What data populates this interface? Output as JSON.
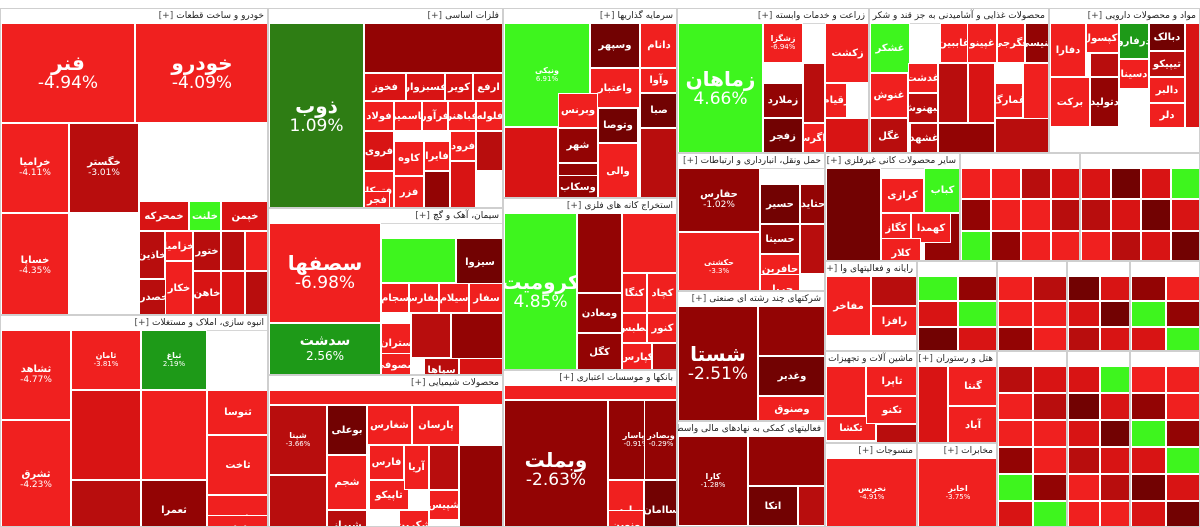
{
  "sectors": [
    {
      "id": "auto",
      "title": "خودرو و ساخت قطعات",
      "plus": "[+]",
      "tiles": [
        {
          "symbol": "فنر",
          "change": "-4.94%",
          "color": "r",
          "size": "lg"
        },
        {
          "symbol": "خودرو",
          "change": "-4.09%",
          "color": "r",
          "size": "lg"
        },
        {
          "symbol": "خرامیا",
          "change": "-4.11%",
          "color": "r",
          "size": "sm"
        },
        {
          "symbol": "خگستر",
          "change": "-3.01%",
          "color": "r3",
          "size": "sm"
        },
        {
          "symbol": "خساپا",
          "change": "-4.35%",
          "color": "r",
          "size": "sm"
        },
        {
          "symbol": "خمحرکه",
          "change": "",
          "color": "r2",
          "size": "sm"
        },
        {
          "symbol": "خلنت",
          "change": "",
          "color": "g-light",
          "size": "sm"
        },
        {
          "symbol": "خپمن",
          "change": "",
          "color": "r2",
          "size": "sm"
        },
        {
          "symbol": "خاذین",
          "change": "",
          "color": "r3",
          "size": "sm"
        },
        {
          "symbol": "خزامیا",
          "change": "",
          "color": "r",
          "size": "sm"
        },
        {
          "symbol": "خصدر",
          "change": "",
          "color": "r3",
          "size": "sm"
        },
        {
          "symbol": "خکار",
          "change": "",
          "color": "r",
          "size": "sm"
        },
        {
          "symbol": "ختور",
          "change": "",
          "color": "r3",
          "size": "sm"
        },
        {
          "symbol": "خاهن",
          "change": "",
          "color": "r2",
          "size": "sm"
        }
      ]
    },
    {
      "id": "basic-metals",
      "title": "فلزات اساسی",
      "plus": "[+]",
      "tiles": [
        {
          "symbol": "ذوب",
          "change": "1.09%",
          "color": "g-deep",
          "size": "lg"
        },
        {
          "symbol": "کویر",
          "change": "",
          "color": "r2",
          "size": "sm"
        },
        {
          "symbol": "ارفع",
          "change": "",
          "color": "r2",
          "size": "sm"
        },
        {
          "symbol": "فخوز",
          "change": "",
          "color": "r2",
          "size": "sm"
        },
        {
          "symbol": "فسبزوار",
          "change": "",
          "color": "r2",
          "size": "sm"
        },
        {
          "symbol": "فولاد",
          "change": "",
          "color": "r",
          "size": "sm"
        },
        {
          "symbol": "فاسمین",
          "change": "",
          "color": "r",
          "size": "sm"
        },
        {
          "symbol": "فرآور",
          "change": "",
          "color": "r",
          "size": "sm"
        },
        {
          "symbol": "فباهنر",
          "change": "",
          "color": "r",
          "size": "sm"
        },
        {
          "symbol": "فلوله",
          "change": "",
          "color": "r",
          "size": "sm"
        },
        {
          "symbol": "فروی",
          "change": "",
          "color": "r2",
          "size": "sm"
        },
        {
          "symbol": "کاوه",
          "change": "",
          "color": "r",
          "size": "sm"
        },
        {
          "symbol": "فتوکا",
          "change": "",
          "color": "r",
          "size": "sm"
        },
        {
          "symbol": "فایرا",
          "change": "",
          "color": "r",
          "size": "sm"
        },
        {
          "symbol": "فزر",
          "change": "",
          "color": "r",
          "size": "sm"
        },
        {
          "symbol": "فرود",
          "change": "",
          "color": "r",
          "size": "sm"
        },
        {
          "symbol": "فجر",
          "change": "",
          "color": "r",
          "size": "sm"
        }
      ]
    },
    {
      "id": "investment",
      "title": "سرمایه گذاریها",
      "plus": "[+]",
      "tiles": [
        {
          "symbol": "وسپهر",
          "change": "",
          "color": "r5",
          "size": "sm"
        },
        {
          "symbol": "وصنعت",
          "change": "",
          "color": "g-light",
          "size": "sm"
        },
        {
          "symbol": "ونیکی",
          "change": "6.91%",
          "color": "g-light",
          "size": "xs"
        },
        {
          "symbol": "دانام",
          "change": "",
          "color": "r",
          "size": "sm"
        },
        {
          "symbol": "وآوا",
          "change": "",
          "color": "r",
          "size": "sm"
        },
        {
          "symbol": "واعتبار",
          "change": "",
          "color": "r",
          "size": "sm"
        },
        {
          "symbol": "وبرنس",
          "change": "",
          "color": "r",
          "size": "sm"
        },
        {
          "symbol": "وتوصا",
          "change": "",
          "color": "r5",
          "size": "sm"
        },
        {
          "symbol": "صبا",
          "change": "",
          "color": "r5",
          "size": "sm"
        },
        {
          "symbol": "وبهمن",
          "change": "",
          "color": "r4",
          "size": "sm"
        },
        {
          "symbol": "شهر",
          "change": "",
          "color": "r4",
          "size": "sm"
        },
        {
          "symbol": "وسکاب",
          "change": "",
          "color": "r4",
          "size": "sm"
        },
        {
          "symbol": "والی",
          "change": "",
          "color": "r",
          "size": "sm"
        }
      ]
    },
    {
      "id": "agriculture",
      "title": "زراعت و خدمات وابسته",
      "plus": "[+]",
      "tiles": [
        {
          "symbol": "زماهان",
          "change": "4.66%",
          "color": "g-light",
          "size": "lg"
        },
        {
          "symbol": "زشگزا",
          "change": "-6.94%",
          "color": "r",
          "size": "xs"
        },
        {
          "symbol": "زملارد",
          "change": "",
          "color": "r4",
          "size": "sm"
        },
        {
          "symbol": "زقیام",
          "change": "",
          "color": "r",
          "size": "sm"
        },
        {
          "symbol": "زکشت",
          "change": "",
          "color": "r",
          "size": "sm"
        },
        {
          "symbol": "زاگرس",
          "change": "",
          "color": "r",
          "size": "sm"
        },
        {
          "symbol": "زفجر",
          "change": "",
          "color": "r5",
          "size": "sm"
        }
      ]
    },
    {
      "id": "food",
      "title": "محصولات غذایی و آشامیدنی به جز قند و شکر",
      "plus": "[+]",
      "tiles": [
        {
          "symbol": "غشکر",
          "change": "",
          "color": "g-light",
          "size": "sm"
        },
        {
          "symbol": "غنوش",
          "change": "",
          "color": "r",
          "size": "sm"
        },
        {
          "symbol": "غگل",
          "change": "",
          "color": "r3",
          "size": "sm"
        },
        {
          "symbol": "غبهنوش",
          "change": "",
          "color": "r3",
          "size": "sm"
        },
        {
          "symbol": "غدشت",
          "change": "",
          "color": "r",
          "size": "sm"
        },
        {
          "symbol": "غاببین",
          "change": "",
          "color": "r",
          "size": "sm"
        },
        {
          "symbol": "غشهد",
          "change": "",
          "color": "r3",
          "size": "sm"
        },
        {
          "symbol": "غنیسی",
          "change": "",
          "color": "r4",
          "size": "sm"
        },
        {
          "symbol": "غپینو",
          "change": "",
          "color": "r",
          "size": "sm"
        },
        {
          "symbol": "غگرجی",
          "change": "",
          "color": "r",
          "size": "sm"
        },
        {
          "symbol": "غمارگ",
          "change": "",
          "color": "r",
          "size": "sm"
        }
      ]
    },
    {
      "id": "pharma",
      "title": "مواد و محصولات دارویی",
      "plus": "[+]",
      "tiles": [
        {
          "symbol": "درفارو",
          "change": "",
          "color": "g-mid",
          "size": "sm"
        },
        {
          "symbol": "دبالک",
          "change": "",
          "color": "r5",
          "size": "sm"
        },
        {
          "symbol": "تیپیکو",
          "change": "",
          "color": "r3",
          "size": "sm"
        },
        {
          "symbol": "دالبر",
          "change": "",
          "color": "r",
          "size": "sm"
        },
        {
          "symbol": "برکت",
          "change": "",
          "color": "r",
          "size": "sm"
        },
        {
          "symbol": "دکپسول",
          "change": "",
          "color": "r",
          "size": "sm"
        },
        {
          "symbol": "دلر",
          "change": "",
          "color": "r",
          "size": "sm"
        },
        {
          "symbol": "دفارا",
          "change": "",
          "color": "r",
          "size": "sm"
        },
        {
          "symbol": "دتولید",
          "change": "",
          "color": "r4",
          "size": "sm"
        },
        {
          "symbol": "دسینا",
          "change": "",
          "color": "r",
          "size": "sm"
        }
      ]
    },
    {
      "id": "cement",
      "title": "سیمان، آهک و گچ",
      "plus": "[+]",
      "tiles": [
        {
          "symbol": "سصفها",
          "change": "-6.98%",
          "color": "r",
          "size": "lg"
        },
        {
          "symbol": "سدشت",
          "change": "2.56%",
          "color": "g-mid",
          "size": "md"
        },
        {
          "symbol": "سیزوا",
          "change": "",
          "color": "r5",
          "size": "sm"
        },
        {
          "symbol": "سفار",
          "change": "",
          "color": "r",
          "size": "sm"
        },
        {
          "symbol": "سیلام",
          "change": "",
          "color": "r",
          "size": "sm"
        },
        {
          "symbol": "سفارس",
          "change": "",
          "color": "r",
          "size": "sm"
        },
        {
          "symbol": "سجام",
          "change": "",
          "color": "r",
          "size": "sm"
        },
        {
          "symbol": "ستران",
          "change": "",
          "color": "r",
          "size": "sm"
        },
        {
          "symbol": "سصوفی",
          "change": "",
          "color": "r",
          "size": "sm"
        },
        {
          "symbol": "سپاها",
          "change": "",
          "color": "r3",
          "size": "sm"
        }
      ]
    },
    {
      "id": "mining",
      "title": "استخراج کانه های فلزی",
      "plus": "[+]",
      "tiles": [
        {
          "symbol": "کرومیت",
          "change": "4.85%",
          "color": "g-light",
          "size": "lg"
        },
        {
          "symbol": "کچاد",
          "change": "",
          "color": "r",
          "size": "sm"
        },
        {
          "symbol": "کنگا",
          "change": "",
          "color": "r",
          "size": "sm"
        },
        {
          "symbol": "ومعادن",
          "change": "",
          "color": "r4",
          "size": "sm"
        },
        {
          "symbol": "کگل",
          "change": "",
          "color": "r4",
          "size": "sm"
        },
        {
          "symbol": "کپارس",
          "change": "",
          "color": "r",
          "size": "sm"
        },
        {
          "symbol": "کنور",
          "change": "",
          "color": "r",
          "size": "sm"
        },
        {
          "symbol": "کطبس",
          "change": "",
          "color": "r",
          "size": "sm"
        }
      ]
    },
    {
      "id": "transport",
      "title": "حمل ونقل، انبارداری و ارتباطات",
      "plus": "[+]",
      "tiles": [
        {
          "symbol": "حفارس",
          "change": "-1.02%",
          "color": "r4",
          "size": "sm"
        },
        {
          "symbol": "حسیر",
          "change": "",
          "color": "r5",
          "size": "sm"
        },
        {
          "symbol": "حتاید",
          "change": "",
          "color": "r4",
          "size": "sm"
        },
        {
          "symbol": "حسینا",
          "change": "",
          "color": "r4",
          "size": "sm"
        },
        {
          "symbol": "حافرین",
          "change": "",
          "color": "r",
          "size": "sm"
        },
        {
          "symbol": "حکشتی",
          "change": "-3.3%",
          "color": "r",
          "size": "xs"
        },
        {
          "symbol": "حریل",
          "change": "",
          "color": "r",
          "size": "sm"
        }
      ]
    },
    {
      "id": "nonmetal",
      "title": "سایر محصولات کانی غیرفلزی",
      "plus": "[+]",
      "tiles": [
        {
          "symbol": "کباب",
          "change": "",
          "color": "g-light",
          "size": "sm"
        },
        {
          "symbol": "کرازی",
          "change": "",
          "color": "r",
          "size": "sm"
        },
        {
          "symbol": "کگاز",
          "change": "",
          "color": "r",
          "size": "sm"
        },
        {
          "symbol": "کهمدا",
          "change": "",
          "color": "r",
          "size": "sm"
        },
        {
          "symbol": "کلار",
          "change": "",
          "color": "r",
          "size": "sm"
        }
      ]
    },
    {
      "id": "chemical",
      "title": "محصولات شیمیایی",
      "plus": "[+]",
      "tiles": [
        {
          "symbol": "بوعلی",
          "change": "",
          "color": "r5",
          "size": "sm"
        },
        {
          "symbol": "شغارس",
          "change": "",
          "color": "r",
          "size": "sm"
        },
        {
          "symbol": "پارسان",
          "change": "",
          "color": "r",
          "size": "sm"
        },
        {
          "symbol": "شپنا",
          "change": "-3.66%",
          "color": "r3",
          "size": "xs"
        },
        {
          "symbol": "شجم",
          "change": "",
          "color": "r",
          "size": "sm"
        },
        {
          "symbol": "فارس",
          "change": "",
          "color": "r",
          "size": "sm"
        },
        {
          "symbol": "شیراز",
          "change": "",
          "color": "r3",
          "size": "sm"
        },
        {
          "symbol": "تاپیکو",
          "change": "",
          "color": "r",
          "size": "sm"
        },
        {
          "symbol": "آریا",
          "change": "",
          "color": "r",
          "size": "sm"
        },
        {
          "symbol": "شکربن",
          "change": "",
          "color": "r",
          "size": "sm"
        },
        {
          "symbol": "شپیس",
          "change": "",
          "color": "r",
          "size": "sm"
        }
      ]
    },
    {
      "id": "banks",
      "title": "بانکها و موسسات اعتباری",
      "plus": "[+]",
      "tiles": [
        {
          "symbol": "وبملت",
          "change": "-2.63%",
          "color": "r4",
          "size": "lg"
        },
        {
          "symbol": "وپاسار",
          "change": "-0.91%",
          "color": "r4",
          "size": "xs"
        },
        {
          "symbol": "وبصادر",
          "change": "-0.29%",
          "color": "r4",
          "size": "xs"
        },
        {
          "symbol": "ساامان",
          "change": "",
          "color": "r5",
          "size": "sm"
        },
        {
          "symbol": "وپارس",
          "change": "",
          "color": "r",
          "size": "sm"
        },
        {
          "symbol": "ونوین",
          "change": "",
          "color": "r",
          "size": "sm"
        }
      ]
    },
    {
      "id": "mass",
      "title": "انبوه سازی، املاک و مستغلات",
      "plus": "[+]",
      "tiles": [
        {
          "symbol": "ثشاهد",
          "change": "-4.77%",
          "color": "r",
          "size": "sm"
        },
        {
          "symbol": "ثامان",
          "change": "-3.81%",
          "color": "r",
          "size": "xs"
        },
        {
          "symbol": "ثباغ",
          "change": "2.19%",
          "color": "g-mid",
          "size": "xs"
        },
        {
          "symbol": "ثشرق",
          "change": "-4.23%",
          "color": "r",
          "size": "sm"
        },
        {
          "symbol": "ثعمرا",
          "change": "",
          "color": "r4",
          "size": "sm"
        },
        {
          "symbol": "ثاخت",
          "change": "",
          "color": "r",
          "size": "sm"
        },
        {
          "symbol": "ثنوسا",
          "change": "",
          "color": "r",
          "size": "sm"
        },
        {
          "symbol": "ثرود",
          "change": "",
          "color": "r",
          "size": "sm"
        },
        {
          "symbol": "ثامان",
          "change": "",
          "color": "r",
          "size": "sm"
        }
      ]
    },
    {
      "id": "multi",
      "title": "شرکتهای چند رشته ای صنعتی",
      "plus": "[+]",
      "tiles": [
        {
          "symbol": "شستا",
          "change": "-2.51%",
          "color": "r4",
          "size": "lg"
        },
        {
          "symbol": "وغدیر",
          "change": "",
          "color": "r5",
          "size": "sm"
        },
        {
          "symbol": "وصنوق",
          "change": "",
          "color": "r",
          "size": "sm"
        }
      ]
    },
    {
      "id": "finance",
      "title": "فعالیتهای کمکی به نهادهای مالی واسط",
      "plus": "[+]",
      "tiles": [
        {
          "symbol": "کارا",
          "change": "-1.28%",
          "color": "r4",
          "size": "xs"
        },
        {
          "symbol": "اتکا",
          "change": "",
          "color": "r5",
          "size": "sm"
        }
      ]
    },
    {
      "id": "computer",
      "title": "رایانه و فعالیتهای وا",
      "plus": "[+]",
      "tiles": [
        {
          "symbol": "مفاخر",
          "change": "",
          "color": "r",
          "size": "sm"
        },
        {
          "symbol": "رافزا",
          "change": "",
          "color": "r",
          "size": "sm"
        }
      ]
    },
    {
      "id": "machinery",
      "title": "ماشین آلات و تجهیزات",
      "plus": "[+]",
      "tiles": [
        {
          "symbol": "تاپرا",
          "change": "",
          "color": "r",
          "size": "sm"
        },
        {
          "symbol": "تکشا",
          "change": "",
          "color": "r",
          "size": "sm"
        },
        {
          "symbol": "تکنو",
          "change": "",
          "color": "r",
          "size": "sm"
        }
      ]
    },
    {
      "id": "hotel",
      "title": "هتل و رستوران",
      "plus": "[+]",
      "tiles": [
        {
          "symbol": "گنتا",
          "change": "",
          "color": "r",
          "size": "sm"
        },
        {
          "symbol": "آباد",
          "change": "",
          "color": "r",
          "size": "sm"
        }
      ]
    },
    {
      "id": "textile",
      "title": "منسوجات",
      "plus": "[+]",
      "tiles": [
        {
          "symbol": "نخریس",
          "change": "-4.91%",
          "color": "r",
          "size": "xs"
        }
      ]
    },
    {
      "id": "telecom",
      "title": "مخابرات",
      "plus": "[+]",
      "tiles": [
        {
          "symbol": "اخابر",
          "change": "-3.75%",
          "color": "r",
          "size": "xs"
        }
      ]
    }
  ]
}
